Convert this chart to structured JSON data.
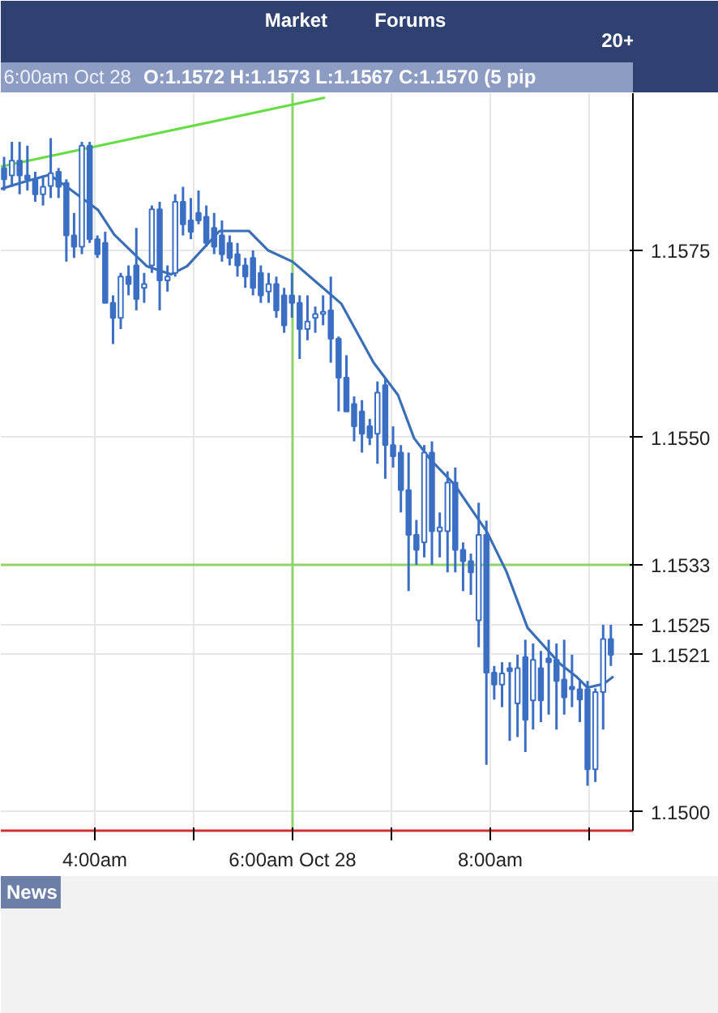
{
  "chart_data": {
    "type": "candlestick",
    "title": "6:00am Oct 28",
    "subtitle": "O:1.1572 H:1.1573 L:1.1567 C:1.1570 (5 pip",
    "x": [
      3.082,
      3.161,
      3.239,
      3.318,
      3.397,
      3.476,
      3.554,
      3.633,
      3.712,
      3.79,
      3.869,
      3.948,
      4.026,
      4.105,
      4.184,
      4.262,
      4.341,
      4.42,
      4.499,
      4.577,
      4.656,
      4.735,
      4.813,
      4.892,
      4.971,
      5.049,
      5.128,
      5.207,
      5.286,
      5.364,
      5.443,
      5.522,
      5.6,
      5.679,
      5.758,
      5.836,
      5.915,
      5.994,
      6.072,
      6.151,
      6.23,
      6.309,
      6.387,
      6.466,
      6.545,
      6.623,
      6.702,
      6.781,
      6.859,
      6.938,
      7.017,
      7.096,
      7.174,
      7.253,
      7.332,
      7.41,
      7.489,
      7.568,
      7.646,
      7.725,
      7.804,
      7.883,
      7.961,
      8.04,
      8.119,
      8.197,
      8.276,
      8.355,
      8.433,
      8.512,
      8.591,
      8.67,
      8.748,
      8.827,
      8.906,
      8.984,
      9.063,
      9.142,
      9.22
    ],
    "ohlc": [
      [
        1.1586,
        1.15875,
        1.1583,
        1.15845
      ],
      [
        1.1585,
        1.15895,
        1.15835,
        1.1587
      ],
      [
        1.1587,
        1.15895,
        1.15825,
        1.1585
      ],
      [
        1.1585,
        1.1589,
        1.1583,
        1.15845
      ],
      [
        1.15845,
        1.15855,
        1.15815,
        1.15825
      ],
      [
        1.15825,
        1.1585,
        1.1581,
        1.15835
      ],
      [
        1.15836,
        1.159,
        1.1582,
        1.15853
      ],
      [
        1.15855,
        1.1586,
        1.1582,
        1.15835
      ],
      [
        1.1584,
        1.15845,
        1.15735,
        1.1577
      ],
      [
        1.1577,
        1.158,
        1.1574,
        1.15755
      ],
      [
        1.15755,
        1.15895,
        1.15745,
        1.1589
      ],
      [
        1.1589,
        1.15895,
        1.1576,
        1.15765
      ],
      [
        1.15765,
        1.1577,
        1.1574,
        1.15745
      ],
      [
        1.1576,
        1.15775,
        1.1568,
        1.1568
      ],
      [
        1.1568,
        1.1569,
        1.15625,
        1.1566
      ],
      [
        1.1566,
        1.1572,
        1.15645,
        1.15715
      ],
      [
        1.15715,
        1.1573,
        1.1569,
        1.15705
      ],
      [
        1.1573,
        1.1578,
        1.1567,
        1.15685
      ],
      [
        1.157,
        1.1572,
        1.1568,
        1.15705
      ],
      [
        1.1573,
        1.1581,
        1.1572,
        1.15805
      ],
      [
        1.15805,
        1.15815,
        1.1567,
        1.1571
      ],
      [
        1.1571,
        1.1573,
        1.15695,
        1.15715
      ],
      [
        1.1572,
        1.15825,
        1.15715,
        1.15815
      ],
      [
        1.15815,
        1.15835,
        1.1577,
        1.15785
      ],
      [
        1.1579,
        1.1582,
        1.15765,
        1.15775
      ],
      [
        1.158,
        1.1583,
        1.15785,
        1.1579
      ],
      [
        1.15795,
        1.1581,
        1.15755,
        1.1576
      ],
      [
        1.1578,
        1.158,
        1.15745,
        1.15755
      ],
      [
        1.1577,
        1.1579,
        1.15735,
        1.15745
      ],
      [
        1.1576,
        1.1577,
        1.1573,
        1.1574
      ],
      [
        1.15745,
        1.1576,
        1.15715,
        1.1573
      ],
      [
        1.1573,
        1.1574,
        1.157,
        1.15715
      ],
      [
        1.1574,
        1.1575,
        1.1569,
        1.157
      ],
      [
        1.1572,
        1.1573,
        1.1568,
        1.1569
      ],
      [
        1.15695,
        1.1572,
        1.1568,
        1.15705
      ],
      [
        1.15705,
        1.15715,
        1.1566,
        1.1567
      ],
      [
        1.1569,
        1.157,
        1.1564,
        1.1565
      ],
      [
        1.1569,
        1.1572,
        1.1566,
        1.1568
      ],
      [
        1.1568,
        1.1569,
        1.15605,
        1.15645
      ],
      [
        1.15645,
        1.1569,
        1.1563,
        1.15655
      ],
      [
        1.1566,
        1.15675,
        1.1564,
        1.15665
      ],
      [
        1.15665,
        1.1569,
        1.1565,
        1.15668
      ],
      [
        1.1567,
        1.15715,
        1.156,
        1.15632
      ],
      [
        1.15632,
        1.15635,
        1.15535,
        1.1558
      ],
      [
        1.1558,
        1.1561,
        1.15535,
        1.15535
      ],
      [
        1.15545,
        1.15555,
        1.15495,
        1.15515
      ],
      [
        1.15535,
        1.1555,
        1.1548,
        1.15505
      ],
      [
        1.15515,
        1.15525,
        1.1549,
        1.155
      ],
      [
        1.15505,
        1.15575,
        1.15465,
        1.1556
      ],
      [
        1.1557,
        1.1558,
        1.15445,
        1.1549
      ],
      [
        1.1549,
        1.15515,
        1.1546,
        1.15475
      ],
      [
        1.1548,
        1.1549,
        1.154,
        1.1543
      ],
      [
        1.1543,
        1.1548,
        1.15295,
        1.1537
      ],
      [
        1.1537,
        1.1539,
        1.1533,
        1.1535
      ],
      [
        1.1536,
        1.1549,
        1.1534,
        1.1548
      ],
      [
        1.1548,
        1.15495,
        1.1533,
        1.15375
      ],
      [
        1.15375,
        1.154,
        1.1534,
        1.1538
      ],
      [
        1.15375,
        1.15455,
        1.1532,
        1.1544
      ],
      [
        1.1544,
        1.1546,
        1.1532,
        1.1535
      ],
      [
        1.1535,
        1.1536,
        1.15295,
        1.15335
      ],
      [
        1.15335,
        1.15345,
        1.1529,
        1.1532
      ],
      [
        1.15256,
        1.15413,
        1.1522,
        1.1537
      ],
      [
        1.1537,
        1.15389,
        1.15063,
        1.15186
      ],
      [
        1.15186,
        1.15195,
        1.1515,
        1.1517
      ],
      [
        1.1517,
        1.152,
        1.1514,
        1.15185
      ],
      [
        1.15192,
        1.152,
        1.15095,
        1.15188
      ],
      [
        1.15145,
        1.1521,
        1.151,
        1.15192
      ],
      [
        1.15207,
        1.1523,
        1.1508,
        1.15123
      ],
      [
        1.15149,
        1.15225,
        1.1511,
        1.15203
      ],
      [
        1.15192,
        1.15215,
        1.1512,
        1.15149
      ],
      [
        1.15205,
        1.1523,
        1.1513,
        1.152
      ],
      [
        1.15203,
        1.15225,
        1.1511,
        1.15175
      ],
      [
        1.15177,
        1.1523,
        1.1513,
        1.15153
      ],
      [
        1.15167,
        1.1521,
        1.1514,
        1.15164
      ],
      [
        1.15164,
        1.15175,
        1.1512,
        1.1515
      ],
      [
        1.15164,
        1.15175,
        1.15035,
        1.15057
      ],
      [
        1.15057,
        1.15165,
        1.1504,
        1.1516
      ],
      [
        1.1516,
        1.1525,
        1.1511,
        1.15231
      ],
      [
        1.15231,
        1.1525,
        1.15195,
        1.1521
      ]
    ],
    "color": "#3b6fc4",
    "series": [
      {
        "type": "line",
        "color": "#3a6fb8",
        "x": [
          3.049,
          3.295,
          3.541,
          3.705,
          4.033,
          4.197,
          4.525,
          4.77,
          4.934,
          5.262,
          5.557,
          5.754,
          6.0,
          6.246,
          6.492,
          6.82,
          7.066,
          7.23,
          7.393,
          7.639,
          7.967,
          8.164,
          8.377,
          8.705,
          8.869,
          8.984,
          9.148,
          9.246
        ],
        "values": [
          1.15832,
          1.15842,
          1.15851,
          1.15836,
          1.15804,
          1.15771,
          1.15729,
          1.15718,
          1.15729,
          1.15776,
          1.15776,
          1.1575,
          1.15735,
          1.15707,
          1.15679,
          1.156,
          1.15557,
          1.15499,
          1.15471,
          1.15437,
          1.15374,
          1.15321,
          1.15246,
          1.15198,
          1.15181,
          1.15166,
          1.15171,
          1.15181
        ]
      },
      {
        "type": "line",
        "color": "#66dd44",
        "x": [
          3.049,
          6.328
        ],
        "values": [
          1.15862,
          1.15954
        ]
      }
    ],
    "xlim": [
      3.049,
      9.443
    ],
    "ylim": [
      1.14975,
      1.1596
    ],
    "xticks": [
      {
        "value": 4,
        "label": "4:00am"
      },
      {
        "value": 5,
        "label": null
      },
      {
        "value": 6,
        "label": "6:00am Oct 28"
      },
      {
        "value": 7,
        "label": null
      },
      {
        "value": 8,
        "label": "8:00am"
      },
      {
        "value": 9,
        "label": null
      }
    ],
    "yticks": [
      {
        "value": 1.15,
        "label": "1.1500"
      },
      1.1521,
      1.1525,
      {
        "value": 1.155,
        "label": "1.1550"
      },
      1.1575
    ],
    "ref_lines": [
      {
        "axis": "x",
        "value": 6,
        "color": "#8fd46a"
      },
      {
        "axis": "y",
        "value": 1.1533,
        "label": "1.1533",
        "color": "#8fd46a"
      }
    ],
    "annotations": [
      "Market",
      "Forums",
      "20+",
      "News"
    ],
    "grid": true
  }
}
